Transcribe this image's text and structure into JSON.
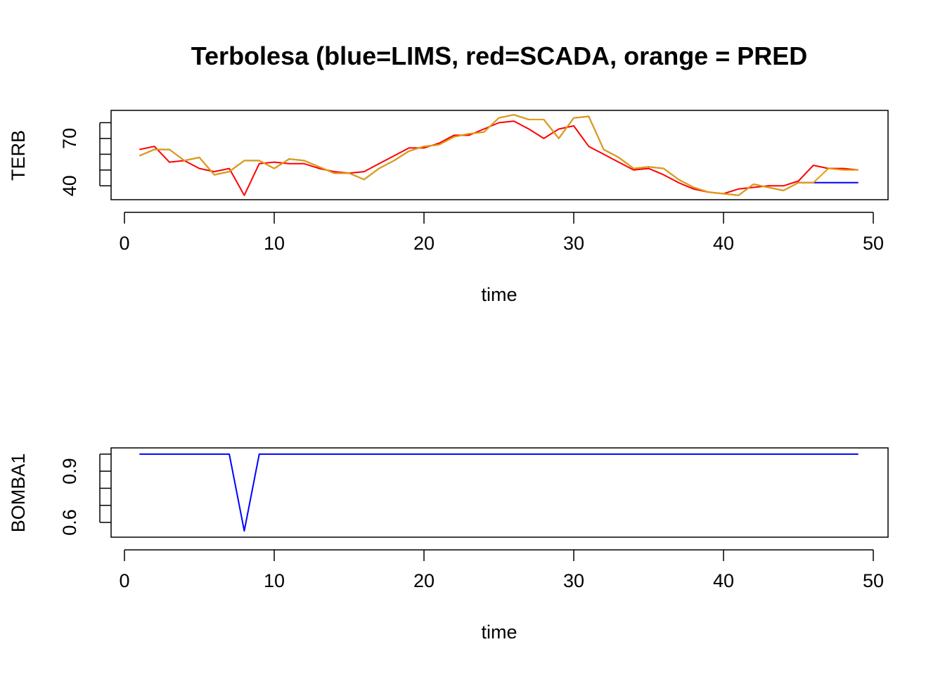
{
  "chart_data": [
    {
      "type": "line",
      "title": "Terbolesa (blue=LIMS, red=SCADA, orange = PRED",
      "xlabel": "time",
      "ylabel": "TERB",
      "xlim": [
        0,
        50
      ],
      "ylim": [
        33,
        86
      ],
      "xticks": [
        "0",
        "10",
        "20",
        "30",
        "40",
        "50"
      ],
      "yticks": [
        "40",
        "70"
      ],
      "yticks_unlabeled": [
        50,
        60,
        80
      ],
      "x": [
        1,
        2,
        3,
        4,
        5,
        6,
        7,
        8,
        9,
        10,
        11,
        12,
        13,
        14,
        15,
        16,
        17,
        18,
        19,
        20,
        21,
        22,
        23,
        24,
        25,
        26,
        27,
        28,
        29,
        30,
        31,
        32,
        33,
        34,
        35,
        36,
        37,
        38,
        39,
        40,
        41,
        42,
        43,
        44,
        45,
        46,
        47,
        48,
        49
      ],
      "series": [
        {
          "name": "LIMS",
          "color": "#0000ff",
          "values": [
            59,
            63,
            63,
            56,
            58,
            47,
            49,
            56,
            56,
            51,
            57,
            56,
            52,
            48,
            48,
            44,
            51,
            56,
            62,
            65,
            66,
            71,
            73,
            74,
            83,
            85,
            82,
            82,
            70,
            83,
            84,
            63,
            58,
            51,
            52,
            51,
            44,
            39,
            36,
            35,
            34,
            41,
            39,
            37,
            42,
            42,
            42,
            42,
            42
          ]
        },
        {
          "name": "SCADA",
          "color": "#ff0000",
          "values": [
            63,
            65,
            55,
            56,
            51,
            49,
            51,
            34,
            54,
            55,
            54,
            54,
            51,
            49,
            48,
            49,
            54,
            59,
            64,
            64,
            67,
            72,
            72,
            76,
            80,
            81,
            76,
            70,
            76,
            78,
            65,
            60,
            55,
            50,
            51,
            47,
            42,
            38,
            36,
            35,
            38,
            39,
            40,
            40,
            43,
            53,
            51,
            51,
            50
          ]
        },
        {
          "name": "PRED",
          "color": "#e69f00",
          "values": [
            59,
            63,
            63,
            56,
            58,
            47,
            49,
            56,
            56,
            51,
            57,
            56,
            52,
            48,
            48,
            44,
            51,
            56,
            62,
            65,
            66,
            71,
            73,
            74,
            83,
            85,
            82,
            82,
            70,
            83,
            84,
            63,
            58,
            51,
            52,
            51,
            44,
            39,
            36,
            35,
            34,
            41,
            39,
            37,
            42,
            42,
            51,
            50,
            50
          ]
        }
      ]
    },
    {
      "type": "line",
      "title": "",
      "xlabel": "time",
      "ylabel": "BOMBA1",
      "xlim": [
        0,
        50
      ],
      "ylim": [
        0.53,
        1.02
      ],
      "xticks": [
        "0",
        "10",
        "20",
        "30",
        "40",
        "50"
      ],
      "yticks": [
        "0.6",
        "0.9"
      ],
      "yticks_unlabeled": [
        0.7,
        0.8,
        1.0
      ],
      "x": [
        1,
        2,
        3,
        4,
        5,
        6,
        7,
        8,
        9,
        10,
        11,
        12,
        13,
        14,
        15,
        16,
        17,
        18,
        19,
        20,
        21,
        22,
        23,
        24,
        25,
        26,
        27,
        28,
        29,
        30,
        31,
        32,
        33,
        34,
        35,
        36,
        37,
        38,
        39,
        40,
        41,
        42,
        43,
        44,
        45,
        46,
        47,
        48,
        49
      ],
      "series": [
        {
          "name": "LIMS",
          "color": "#0000ff",
          "values": [
            1,
            1,
            1,
            1,
            1,
            1,
            1,
            0.55,
            1,
            1,
            1,
            1,
            1,
            1,
            1,
            1,
            1,
            1,
            1,
            1,
            1,
            1,
            1,
            1,
            1,
            1,
            1,
            1,
            1,
            1,
            1,
            1,
            1,
            1,
            1,
            1,
            1,
            1,
            1,
            1,
            1,
            1,
            1,
            1,
            1,
            1,
            1,
            1,
            1
          ]
        }
      ]
    }
  ]
}
